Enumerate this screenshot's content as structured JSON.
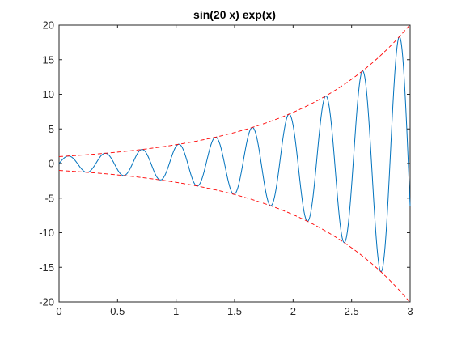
{
  "chart_data": {
    "type": "line",
    "title": "sin(20 x) exp(x)",
    "xlabel": "",
    "ylabel": "",
    "xlim": [
      0,
      3
    ],
    "ylim": [
      -20,
      20
    ],
    "grid": false,
    "legend": "none",
    "x_ticks": [
      0,
      0.5,
      1,
      1.5,
      2,
      2.5,
      3
    ],
    "x_tick_labels": [
      "0",
      "0.5",
      "1",
      "1.5",
      "2",
      "2.5",
      "3"
    ],
    "y_ticks": [
      -20,
      -15,
      -10,
      -5,
      0,
      5,
      10,
      15,
      20
    ],
    "y_tick_labels": [
      "-20",
      "-15",
      "-10",
      "-5",
      "0",
      "5",
      "10",
      "15",
      "20"
    ],
    "series": [
      {
        "expression": "sin(20*x)*exp(x)",
        "x_range": [
          0,
          3
        ],
        "style": "solid",
        "color": "#0072bd"
      },
      {
        "expression": "exp(x)",
        "x_range": [
          0,
          3
        ],
        "style": "dashed",
        "color": "#ff0000"
      },
      {
        "expression": "-exp(x)",
        "x_range": [
          0,
          3
        ],
        "style": "dashed",
        "color": "#ff0000"
      }
    ]
  }
}
